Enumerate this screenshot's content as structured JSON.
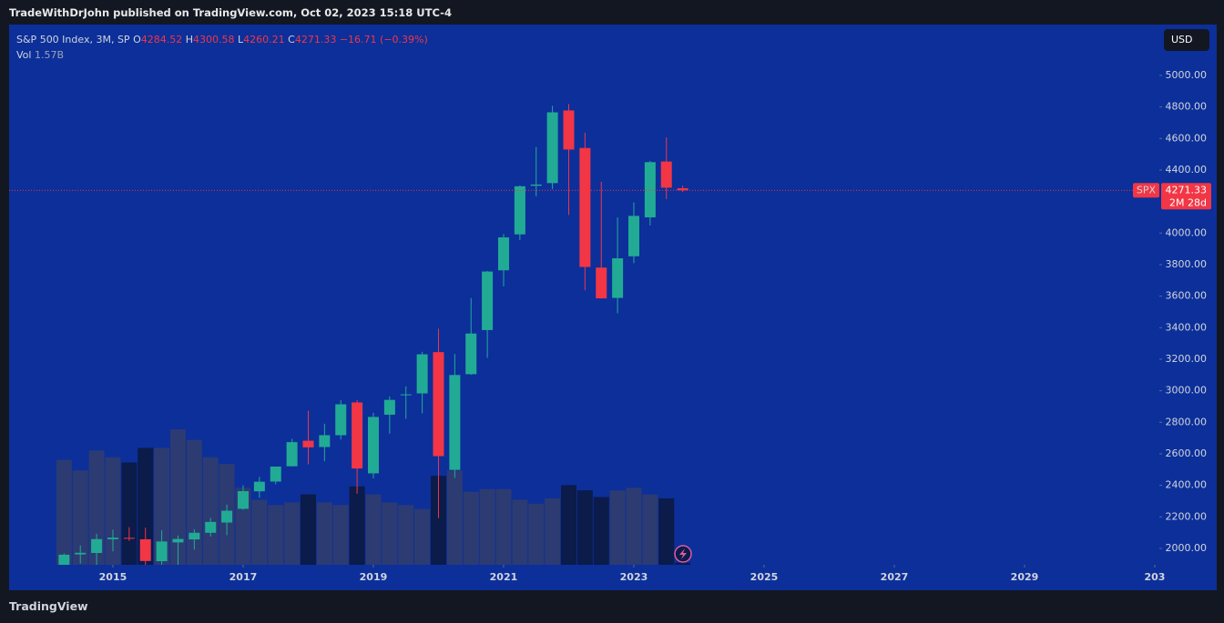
{
  "header": {
    "title": "TradeWithDrJohn published on TradingView.com, Oct 02, 2023 15:18 UTC-4",
    "currency_button": "USD",
    "footer_logo": "TradingView"
  },
  "chart_data": {
    "type": "candlestick",
    "legend": {
      "symbol": "S&P 500 Index, 3M, SP",
      "open_prefix": "O",
      "high_prefix": "H",
      "low_prefix": "L",
      "close_prefix": "C",
      "change": "−16.71 (−0.39%)",
      "volume_title": "Vol",
      "volume_value": "1.57B"
    },
    "symbol_tag": "SPX",
    "countdown": "2M 28d",
    "up_color": "#22ab94",
    "down_color": "#f23645",
    "volume_up_color": "#2c3b72",
    "volume_down_color": "#0b1b4a",
    "x": [
      2014.25,
      2014.5,
      2014.75,
      2015,
      2015.25,
      2015.5,
      2015.75,
      2016,
      2016.25,
      2016.5,
      2016.75,
      2017,
      2017.25,
      2017.5,
      2017.75,
      2018,
      2018.25,
      2018.5,
      2018.75,
      2019,
      2019.25,
      2019.5,
      2019.75,
      2020,
      2020.25,
      2020.5,
      2020.75,
      2021,
      2021.25,
      2021.5,
      2021.75,
      2022,
      2022.25,
      2022.5,
      2022.75,
      2023,
      2023.25,
      2023.5,
      2023.75
    ],
    "open": [
      1873,
      1962,
      1971,
      2058,
      2067,
      2058,
      1919,
      2038,
      2057,
      2099,
      2164,
      2251,
      2362,
      2424,
      2521,
      2683,
      2643,
      2718,
      2926,
      2476,
      2848,
      2971,
      2983,
      3245,
      2498,
      3105,
      3385,
      3764,
      3992,
      4300,
      4317,
      4778,
      4540,
      3781,
      3589,
      3853,
      4100,
      4454,
      4284.52
    ],
    "high": [
      1968,
      2019,
      2093,
      2119,
      2135,
      2132,
      2116,
      2082,
      2121,
      2194,
      2278,
      2401,
      2454,
      2519,
      2695,
      2873,
      2791,
      2940,
      2940,
      2860,
      2964,
      3028,
      3247,
      3394,
      3233,
      3588,
      3760,
      3994,
      4302,
      4546,
      4808,
      4819,
      4637,
      4325,
      4100,
      4195,
      4458,
      4607,
      4300.58
    ],
    "low": [
      1814,
      1904,
      1821,
      1981,
      2048,
      1867,
      1872,
      1810,
      1992,
      2075,
      2084,
      2245,
      2322,
      2407,
      2520,
      2533,
      2553,
      2691,
      2347,
      2444,
      2728,
      2822,
      2856,
      2192,
      2447,
      3101,
      3209,
      3662,
      3955,
      4233,
      4279,
      4115,
      3637,
      3584,
      3492,
      3809,
      4048,
      4216,
      4260.21
    ],
    "close": [
      1960,
      1972,
      2059,
      2068,
      2063,
      1920,
      2044,
      2060,
      2099,
      2168,
      2239,
      2363,
      2423,
      2519,
      2674,
      2641,
      2718,
      2914,
      2507,
      2834,
      2942,
      2977,
      3231,
      2585,
      3100,
      3363,
      3756,
      3973,
      4297,
      4308,
      4766,
      4530,
      3785,
      3586,
      3840,
      4109,
      4450,
      4288,
      4271.33
    ],
    "volume": [
      79,
      71,
      86,
      81,
      77,
      88,
      88,
      102,
      94,
      81,
      76,
      58,
      49,
      45,
      47,
      53,
      47,
      45,
      59,
      53,
      47,
      45,
      42,
      67,
      71,
      55,
      57,
      57,
      49,
      46,
      50,
      60,
      56,
      51,
      56,
      58,
      53,
      50,
      1.57
    ],
    "xlim": [
      2013.406,
      2031.07
    ],
    "xticks": [
      2015,
      2017,
      2019,
      2021,
      2023,
      2025,
      2027,
      2029,
      {
        "value": 2031,
        "label": "203"
      }
    ],
    "ylim": [
      1896,
      5317
    ],
    "volume_ylim": [
      0,
      406
    ],
    "yticks": [
      {
        "value": 2000,
        "label": "2000.00"
      },
      {
        "value": 2200,
        "label": "2200.00"
      },
      {
        "value": 2400,
        "label": "2400.00"
      },
      {
        "value": 2600,
        "label": "2600.00"
      },
      {
        "value": 2800,
        "label": "2800.00"
      },
      {
        "value": 3000,
        "label": "3000.00"
      },
      {
        "value": 3200,
        "label": "3200.00"
      },
      {
        "value": 3400,
        "label": "3400.00"
      },
      {
        "value": 3600,
        "label": "3600.00"
      },
      {
        "value": 3800,
        "label": "3800.00"
      },
      {
        "value": 4000,
        "label": "4000.00"
      },
      {
        "value": 4400,
        "label": "4400.00"
      },
      {
        "value": 4600,
        "label": "4600.00"
      },
      {
        "value": 4800,
        "label": "4800.00"
      },
      {
        "value": 5000,
        "label": "5000.00"
      }
    ],
    "grid": false
  }
}
